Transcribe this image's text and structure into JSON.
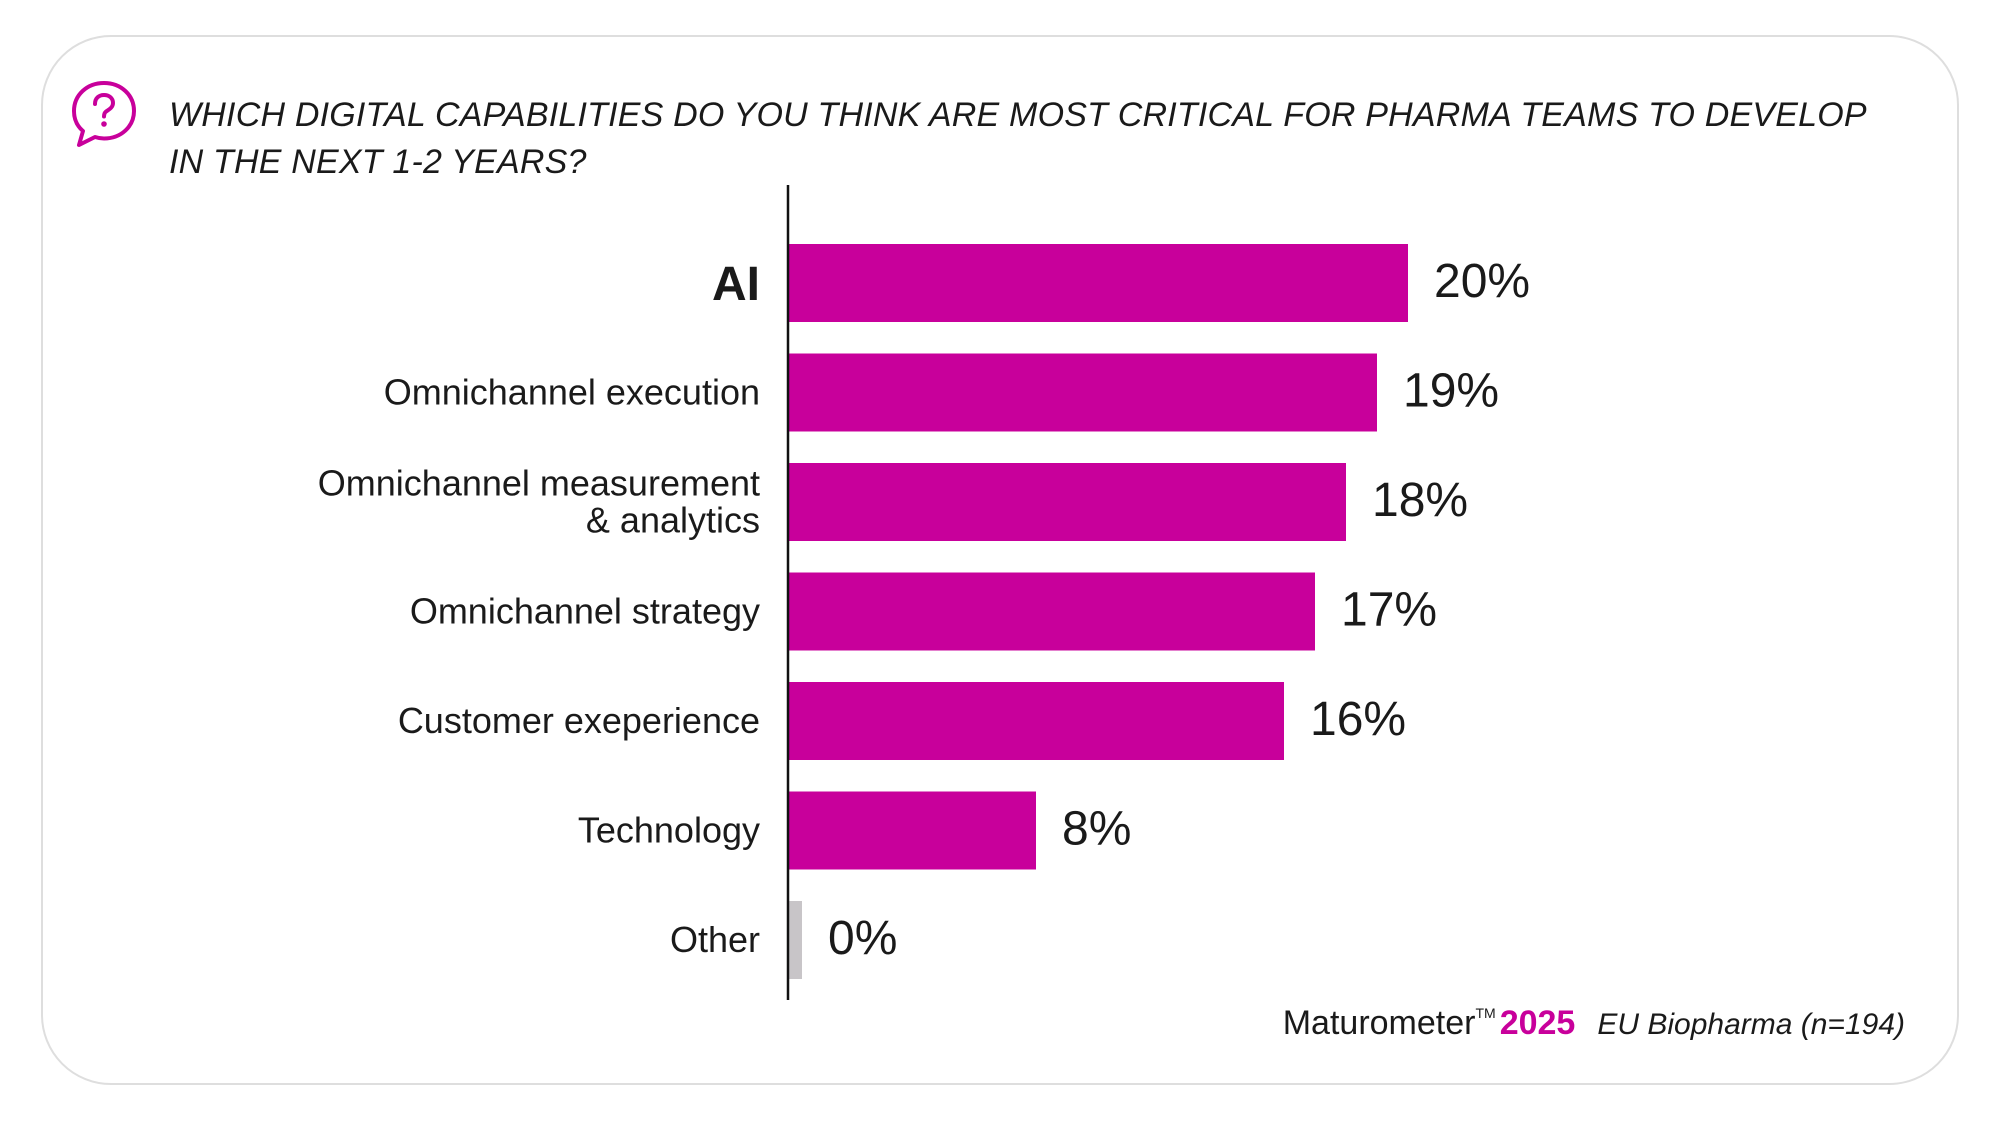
{
  "header": {
    "title_line1": "WHICH DIGITAL CAPABILITIES DO YOU THINK ARE MOST CRITICAL FOR PHARMA TEAMS TO DEVELOP",
    "title_line2": "IN THE NEXT 1-2 YEARS?",
    "icon": "question-speech-bubble-icon"
  },
  "footer": {
    "brand": "Maturometer",
    "trademark": "TM",
    "year": "2025",
    "source": "EU Biopharma (n=194)"
  },
  "colors": {
    "accent": "#c8009b",
    "other_bar": "#c8c5c8",
    "text": "#1a1a1a",
    "axis": "#111111"
  },
  "chart_data": {
    "type": "bar",
    "orientation": "horizontal",
    "title": "WHICH DIGITAL CAPABILITIES DO YOU THINK ARE MOST CRITICAL FOR PHARMA TEAMS TO DEVELOP IN THE NEXT 1-2 YEARS?",
    "categories": [
      "AI",
      "Omnichannel execution",
      "Omnichannel measurement\n& analytics",
      "Omnichannel strategy",
      "Customer exeperience",
      "Technology",
      "Other"
    ],
    "values": [
      20,
      19,
      18,
      17,
      16,
      8,
      0
    ],
    "value_labels": [
      "20%",
      "19%",
      "18%",
      "17%",
      "16%",
      "8%",
      "0%"
    ],
    "highlight_category": "AI",
    "xlabel": "",
    "ylabel": "",
    "xlim": [
      0,
      20
    ],
    "grid": false,
    "legend": "none"
  }
}
